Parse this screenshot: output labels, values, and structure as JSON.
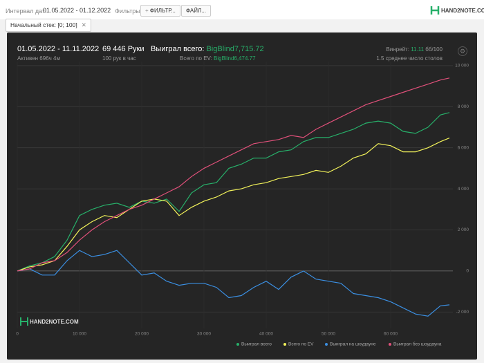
{
  "toolbar": {
    "date_label": "Интервал дат:",
    "date_range": "01.05.2022 - 01.12.2022",
    "filters_label": "Фильтры:",
    "filter_button": "ФИЛЬТР...",
    "file_button": "ФАЙЛ...",
    "chip": "Начальный стек: [0; 100]"
  },
  "brand": "HAND2NOTE.COM",
  "header": {
    "period": "01.05.2022 - 11.11.2022",
    "active": "Активен 696ч 4м",
    "hands": "69 446 Руки",
    "rate": "100 рук в час",
    "won_label": "Выиграл всего:",
    "won_value": "BigBlind7,715.72",
    "ev_label": "Всего по EV:",
    "ev_value": "BigBlind6,474.77",
    "winrate_label": "Винрейт:",
    "winrate_value": "11.11",
    "winrate_unit": "бб/100",
    "tables": "1.5 среднее число столов"
  },
  "chart_data": {
    "type": "line",
    "x": [
      0,
      2000,
      4000,
      6000,
      8000,
      10000,
      12000,
      14000,
      16000,
      18000,
      20000,
      22000,
      24000,
      26000,
      28000,
      30000,
      32000,
      34000,
      36000,
      38000,
      40000,
      42000,
      44000,
      46000,
      48000,
      50000,
      52000,
      54000,
      56000,
      58000,
      60000,
      62000,
      64000,
      66000,
      68000,
      69446
    ],
    "series": [
      {
        "name": "Выиграл всего",
        "color": "#27b06a",
        "values": [
          0,
          250,
          400,
          700,
          1500,
          2700,
          3000,
          3200,
          3300,
          3100,
          3400,
          3300,
          3500,
          2900,
          3800,
          4200,
          4300,
          5000,
          5200,
          5500,
          5500,
          5800,
          5900,
          6300,
          6500,
          6500,
          6700,
          6900,
          7200,
          7300,
          7200,
          6800,
          6700,
          7000,
          7600,
          7716
        ]
      },
      {
        "name": "Всего по EV",
        "color": "#f2f25a",
        "values": [
          0,
          200,
          300,
          500,
          1200,
          2000,
          2400,
          2700,
          2600,
          3000,
          3400,
          3500,
          3400,
          2700,
          3100,
          3400,
          3600,
          3900,
          4000,
          4200,
          4300,
          4500,
          4600,
          4700,
          4900,
          4800,
          5100,
          5500,
          5700,
          6200,
          6100,
          5800,
          5800,
          6000,
          6300,
          6475
        ]
      },
      {
        "name": "Выиграл на шоудауне",
        "color": "#3b8fe2",
        "values": [
          0,
          100,
          -200,
          -200,
          500,
          1000,
          700,
          800,
          1000,
          400,
          -200,
          -100,
          -500,
          -700,
          -600,
          -600,
          -800,
          -1300,
          -1200,
          -800,
          -500,
          -900,
          -300,
          0,
          -400,
          -500,
          -600,
          -1100,
          -1200,
          -1300,
          -1500,
          -1800,
          -2100,
          -2200,
          -1700,
          -1650
        ]
      },
      {
        "name": "Выиграл без шоудауна",
        "color": "#e0507a",
        "values": [
          0,
          100,
          400,
          500,
          900,
          1500,
          2000,
          2400,
          2700,
          3000,
          3200,
          3500,
          3800,
          4100,
          4600,
          5000,
          5300,
          5600,
          5900,
          6200,
          6300,
          6400,
          6600,
          6500,
          6900,
          7200,
          7500,
          7800,
          8100,
          8300,
          8500,
          8700,
          8900,
          9100,
          9300,
          9400
        ]
      }
    ],
    "xlim": [
      0,
      70000
    ],
    "ylim": [
      -2800,
      10200
    ],
    "xticks": [
      0,
      {
        "value": 10000,
        "label": "10 000"
      },
      {
        "value": 20000,
        "label": "20 000"
      },
      {
        "value": 30000,
        "label": "30 000"
      },
      {
        "value": 40000,
        "label": "40 000"
      },
      {
        "value": 50000,
        "label": "50 000"
      },
      {
        "value": 60000,
        "label": "60 000"
      }
    ],
    "yticks": [
      {
        "value": -2000,
        "label": "-2 000"
      },
      0,
      {
        "value": 2000,
        "label": "2 000"
      },
      {
        "value": 4000,
        "label": "4 000"
      },
      {
        "value": 6000,
        "label": "6 000"
      },
      {
        "value": 8000,
        "label": "8 000"
      },
      {
        "value": 10000,
        "label": "10 000"
      }
    ],
    "grid": true,
    "legend": "bottom-right"
  }
}
